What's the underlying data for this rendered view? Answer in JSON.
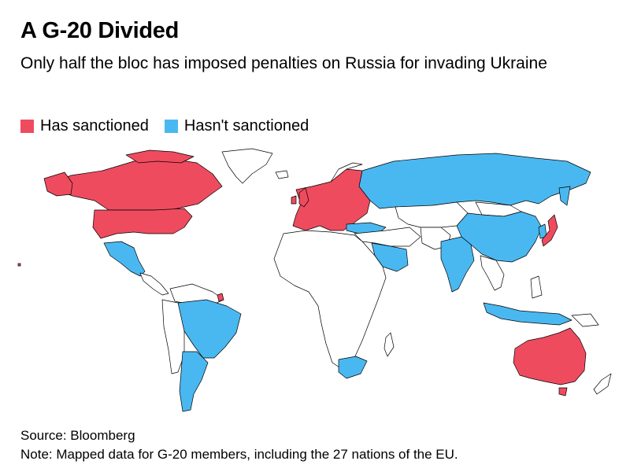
{
  "title": "A G-20 Divided",
  "subtitle": "Only half the bloc has imposed penalties on Russia for invading Ukraine",
  "legend": {
    "sanctioned": {
      "label": "Has sanctioned",
      "color": "#ef4b5f"
    },
    "not_sanctioned": {
      "label": "Hasn't sanctioned",
      "color": "#4ab8f0"
    }
  },
  "colors": {
    "sanctioned": "#ef4b5f",
    "not_sanctioned": "#4ab8f0",
    "other": "#ffffff",
    "border": "#000000"
  },
  "map": {
    "sanctioned": [
      "United States",
      "Canada",
      "European Union",
      "United Kingdom",
      "Japan",
      "Australia"
    ],
    "not_sanctioned": [
      "Russia",
      "China",
      "India",
      "Brazil",
      "Mexico",
      "Argentina",
      "Saudi Arabia",
      "South Africa",
      "Indonesia",
      "Turkey",
      "South Korea"
    ]
  },
  "source": "Source: Bloomberg",
  "note": "Note: Mapped data for G-20 members, including the 27 nations of the EU."
}
